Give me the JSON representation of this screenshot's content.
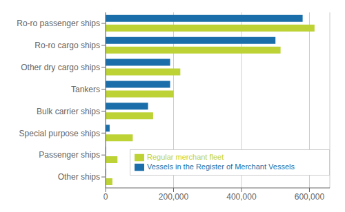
{
  "chart_data": {
    "type": "bar",
    "orientation": "horizontal",
    "categories": [
      "Ro-ro passenger ships",
      "Ro-ro cargo ships",
      "Other dry cargo ships",
      "Tankers",
      "Bulk carrier ships",
      "Special purpose ships",
      "Passenger ships",
      "Other ships"
    ],
    "series": [
      {
        "name": "Vessels in the Register of Merchant Vessels",
        "color": "#1a6faa",
        "values": [
          580000,
          500000,
          190000,
          190000,
          125000,
          12000,
          1000,
          1000
        ]
      },
      {
        "name": "Regular merchant fleet",
        "color": "#bdd234",
        "values": [
          615000,
          515000,
          220000,
          200000,
          140000,
          80000,
          35000,
          20000
        ]
      }
    ],
    "xlim": [
      0,
      660000
    ],
    "xticks": [
      0,
      {
        "value": 200000,
        "label": "200,000"
      },
      {
        "value": 400000,
        "label": "400,000"
      },
      {
        "value": 600000,
        "label": "600,000"
      }
    ],
    "grid": true,
    "legend": "lower right"
  }
}
